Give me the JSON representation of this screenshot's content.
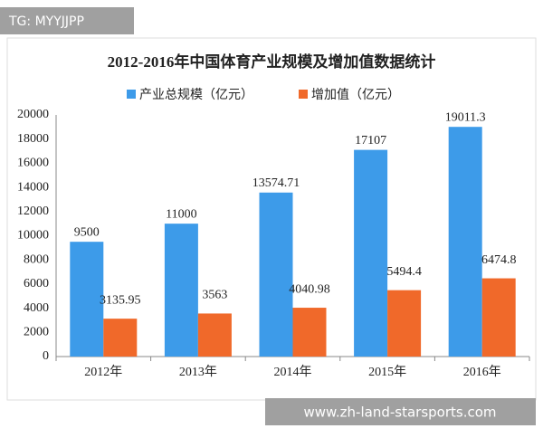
{
  "tag": "TG: MYYJJPP",
  "url": "www.zh-land-starsports.com",
  "chart_data": {
    "type": "bar",
    "title": "2012-2016年中国体育产业规模及增加值数据统计",
    "categories": [
      "2012年",
      "2013年",
      "2014年",
      "2015年",
      "2016年"
    ],
    "series": [
      {
        "name": "产业总规模（亿元）",
        "color": "#3d9be9",
        "values": [
          9500,
          11000,
          13574.71,
          17107,
          19011.3
        ]
      },
      {
        "name": "增加值（亿元）",
        "color": "#f0692a",
        "values": [
          3135.95,
          3563,
          4040.98,
          5494.4,
          6474.8
        ]
      }
    ],
    "ylim": [
      0,
      20000
    ],
    "yticks": [
      0,
      2000,
      4000,
      6000,
      8000,
      10000,
      12000,
      14000,
      16000,
      18000,
      20000
    ],
    "grid": false,
    "legend": "top"
  }
}
